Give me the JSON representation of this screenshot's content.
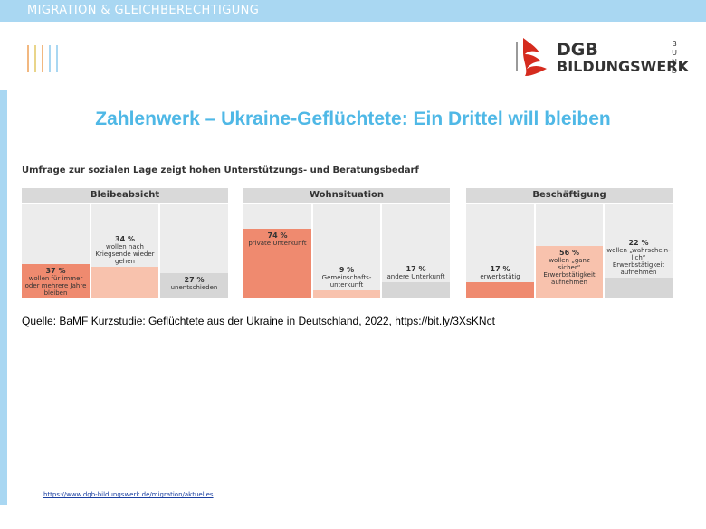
{
  "header": {
    "section_title": "MIGRATION & GLEICHBERECHTIGUNG"
  },
  "logo": {
    "line1": "DGB",
    "line2": "BILDUNGSWERK",
    "vertical": "BUND"
  },
  "slide": {
    "title": "Zahlenwerk – Ukraine-Geflüchtete: Ein Drittel will bleiben"
  },
  "source": "Quelle: BaMF Kurzstudie: Geflüchtete aus der Ukraine in Deutschland, 2022, https://bit.ly/3XsKNct",
  "footer": {
    "link": "https://www.dgb-bildungswerk.de/migration/aktuelles"
  },
  "colors": {
    "accent": "#4fb8e6",
    "bar_dark": "#ef8a6f",
    "bar_light": "#f8c2ad",
    "bar_grey": "#d6d6d6",
    "topbar": "#a9d7f2",
    "brand_red": "#d52b1e"
  },
  "chart_data": [
    {
      "type": "bar",
      "overall_title": "Umfrage zur sozialen Lage zeigt hohen Unterstützungs- und Beratungsbedarf",
      "title": "Bleibeabsicht",
      "ylim": [
        0,
        100
      ],
      "values": [
        37,
        34,
        27
      ],
      "value_labels": [
        "37 %",
        "34 %",
        "27 %"
      ],
      "categories": [
        "wollen für immer oder mehrere Jahre bleiben",
        "wollen nach Kriegsende wieder gehen",
        "unentschieden"
      ]
    },
    {
      "type": "bar",
      "title": "Wohnsituation",
      "ylim": [
        0,
        100
      ],
      "values": [
        74,
        9,
        17
      ],
      "value_labels": [
        "74 %",
        "9 %",
        "17 %"
      ],
      "categories": [
        "private Unterkunft",
        "Gemeinschafts-unterkunft",
        "andere Unterkunft"
      ]
    },
    {
      "type": "bar",
      "title": "Beschäftigung",
      "ylim": [
        0,
        100
      ],
      "values": [
        17,
        56,
        22
      ],
      "value_labels": [
        "17 %",
        "56 %",
        "22 %"
      ],
      "categories": [
        "erwerbstätig",
        "wollen „ganz sicher“ Erwerbstätigkeit aufnehmen",
        "wollen „wahrschein-lich“ Erwerbstätigkeit aufnehmen"
      ]
    }
  ]
}
